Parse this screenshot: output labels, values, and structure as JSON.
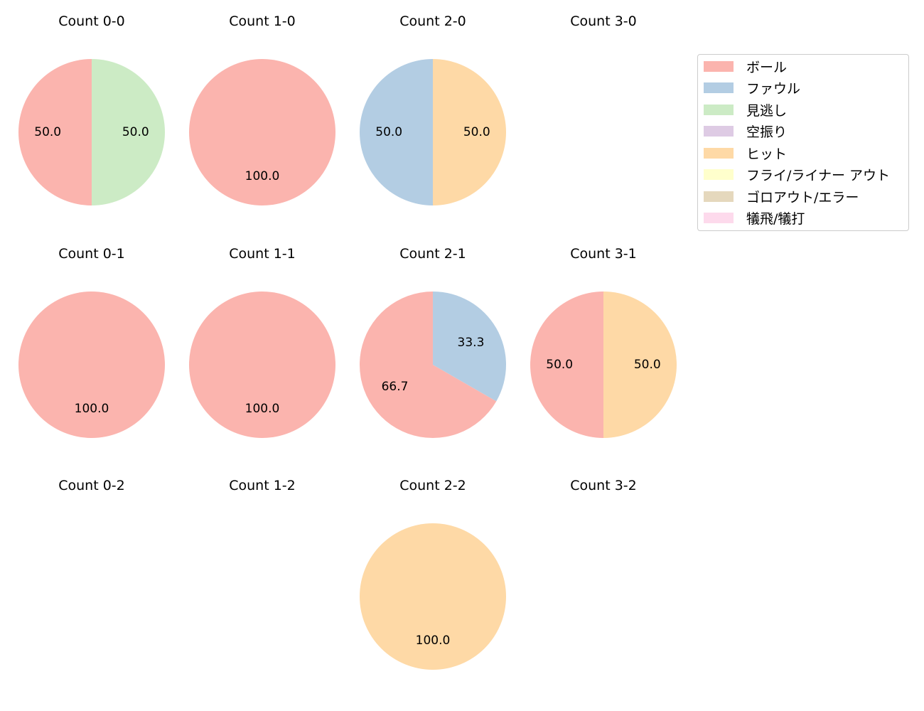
{
  "chart_data": {
    "type": "pie",
    "layout": {
      "rows": 3,
      "cols": 4,
      "legend_position": "upper right"
    },
    "legend": [
      {
        "label": "ボール",
        "color": "#fbb4ae"
      },
      {
        "label": "ファウル",
        "color": "#b3cde3"
      },
      {
        "label": "見逃し",
        "color": "#ccebc5"
      },
      {
        "label": "空振り",
        "color": "#decbe4"
      },
      {
        "label": "ヒット",
        "color": "#fed9a6"
      },
      {
        "label": "フライ/ライナー アウト",
        "color": "#ffffcc"
      },
      {
        "label": "ゴロアウト/エラー",
        "color": "#e5d8bd"
      },
      {
        "label": "犠飛/犠打",
        "color": "#fddaec"
      }
    ],
    "charts": [
      {
        "title": "Count 0-0",
        "row": 0,
        "col": 0,
        "slices": [
          {
            "label": "ボール",
            "value": 50.0
          },
          {
            "label": "見逃し",
            "value": 50.0
          }
        ]
      },
      {
        "title": "Count 1-0",
        "row": 0,
        "col": 1,
        "slices": [
          {
            "label": "ボール",
            "value": 100.0
          }
        ]
      },
      {
        "title": "Count 2-0",
        "row": 0,
        "col": 2,
        "slices": [
          {
            "label": "ファウル",
            "value": 50.0
          },
          {
            "label": "ヒット",
            "value": 50.0
          }
        ]
      },
      {
        "title": "Count 3-0",
        "row": 0,
        "col": 3,
        "slices": []
      },
      {
        "title": "Count 0-1",
        "row": 1,
        "col": 0,
        "slices": [
          {
            "label": "ボール",
            "value": 100.0
          }
        ]
      },
      {
        "title": "Count 1-1",
        "row": 1,
        "col": 1,
        "slices": [
          {
            "label": "ボール",
            "value": 100.0
          }
        ]
      },
      {
        "title": "Count 2-1",
        "row": 1,
        "col": 2,
        "slices": [
          {
            "label": "ボール",
            "value": 66.7
          },
          {
            "label": "ファウル",
            "value": 33.3
          }
        ]
      },
      {
        "title": "Count 3-1",
        "row": 1,
        "col": 3,
        "slices": [
          {
            "label": "ボール",
            "value": 50.0
          },
          {
            "label": "ヒット",
            "value": 50.0
          }
        ]
      },
      {
        "title": "Count 0-2",
        "row": 2,
        "col": 0,
        "slices": []
      },
      {
        "title": "Count 1-2",
        "row": 2,
        "col": 1,
        "slices": []
      },
      {
        "title": "Count 2-2",
        "row": 2,
        "col": 2,
        "slices": [
          {
            "label": "ヒット",
            "value": 100.0
          }
        ]
      },
      {
        "title": "Count 3-2",
        "row": 2,
        "col": 3,
        "slices": []
      }
    ]
  }
}
